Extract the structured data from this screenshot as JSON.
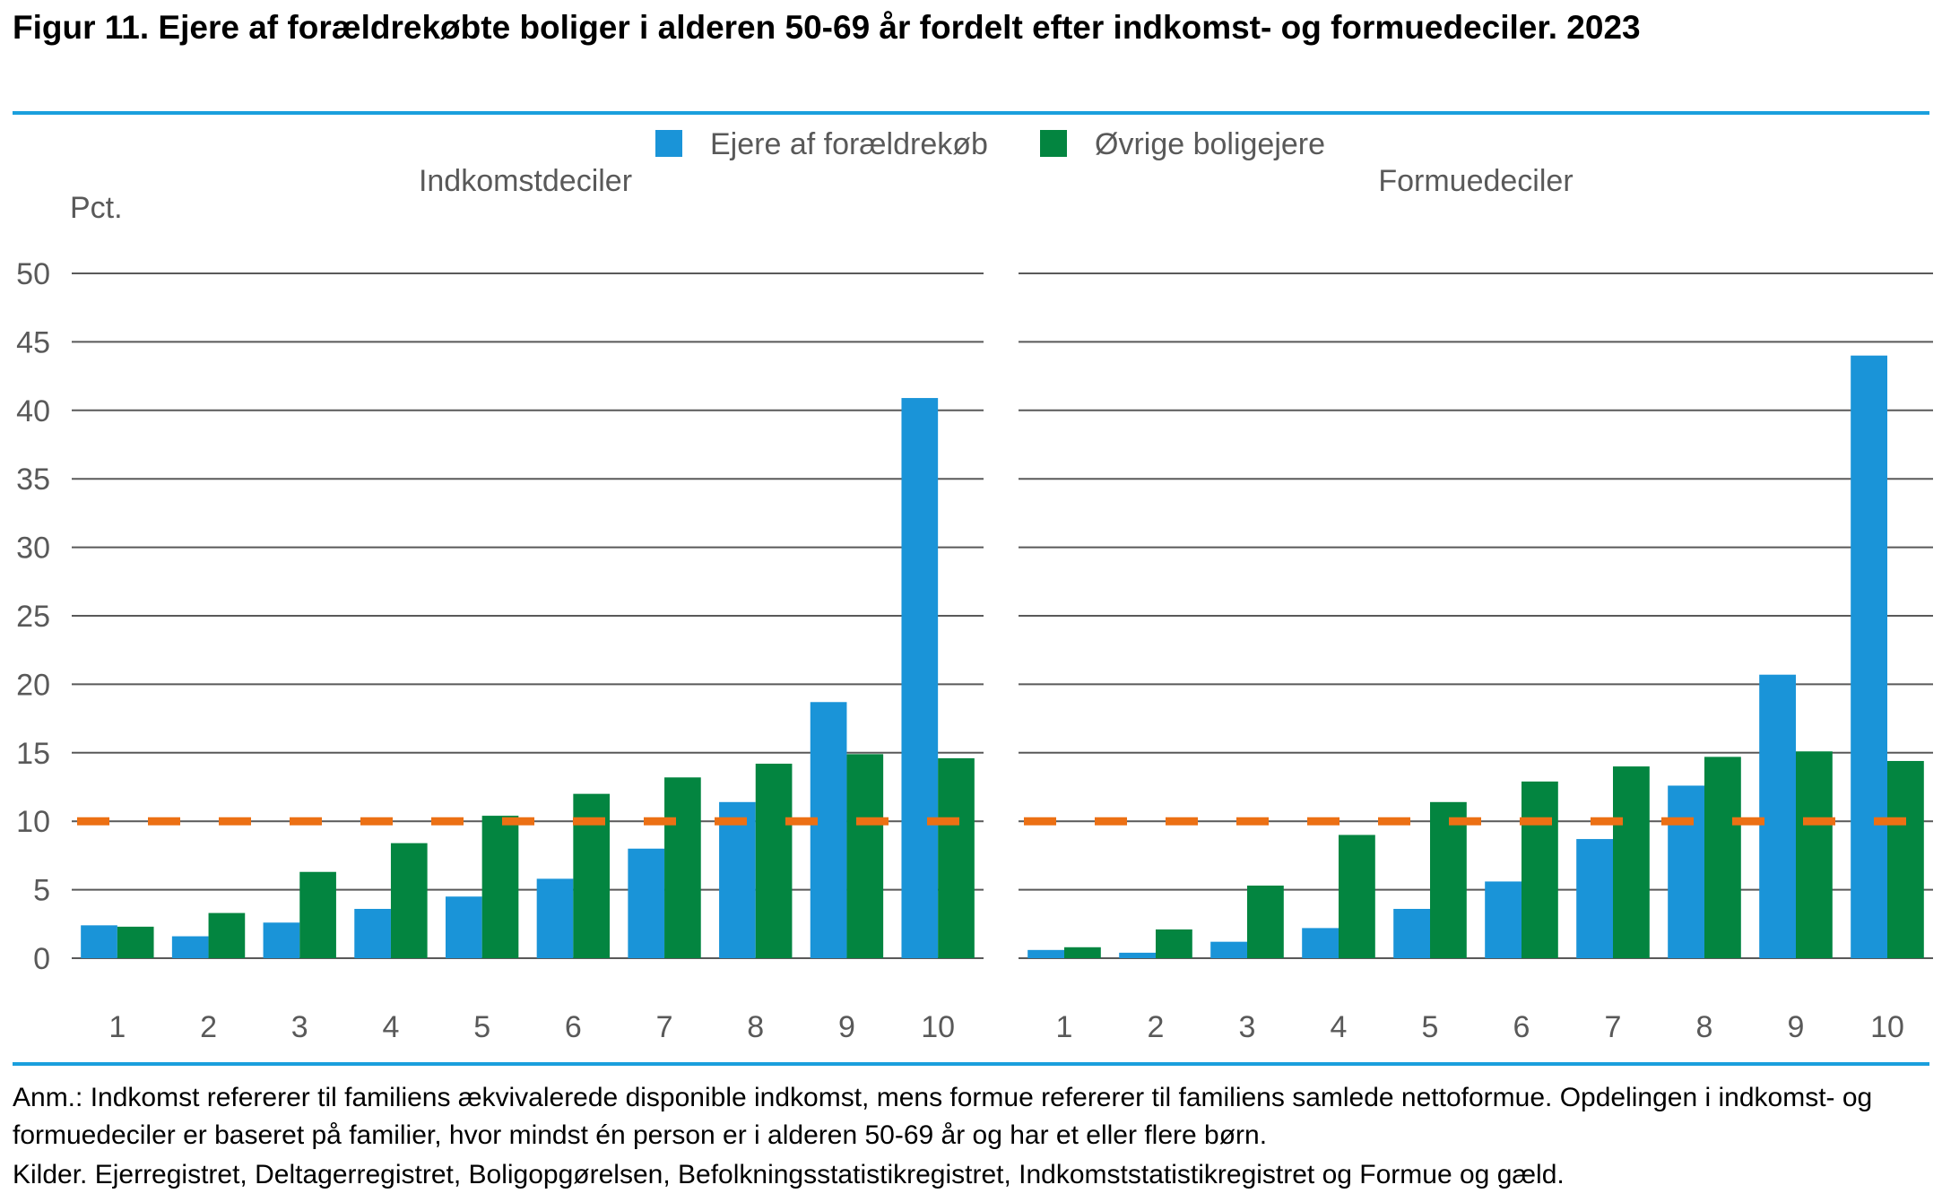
{
  "title": "Figur 11. Ejere af forældrekøbte boliger i alderen 50-69 år fordelt efter indkomst- og formuedeciler. 2023",
  "note": "Anm.: Indkomst refererer til familiens ækvivalerede disponible indkomst, mens formue refererer til familiens samlede nettoformue. Opdelingen i indkomst- og formuedeciler er baseret på familier, hvor mindst én person er i alderen 50-69 år og har et eller flere børn.",
  "sources": "Kilder. Ejerregistret, Deltagerregistret, Boligopgørelsen, Befolkningsstatistikregistret, Indkomststatistikregistret og Formue og gæld.",
  "chart_data": {
    "type": "bar",
    "ylabel": "Pct.",
    "ylim": [
      0,
      50
    ],
    "yticks": [
      0,
      5,
      10,
      15,
      20,
      25,
      30,
      35,
      40,
      45,
      50
    ],
    "grid": true,
    "legend": "top-center",
    "reference_line": 10,
    "colors": {
      "series1": "#1a94d8",
      "series2": "#038540",
      "reference": "#ec7014",
      "grid": "#595959",
      "text": "#595959"
    },
    "legend_entries": [
      "Ejere af forældrekøb",
      "Øvrige boligejere"
    ],
    "panels": [
      {
        "title": "Indkomstdeciler",
        "categories": [
          "1",
          "2",
          "3",
          "4",
          "5",
          "6",
          "7",
          "8",
          "9",
          "10"
        ],
        "series": [
          {
            "name": "Ejere af forældrekøb",
            "values": [
              2.4,
              1.6,
              2.6,
              3.6,
              4.5,
              5.8,
              8.0,
              11.4,
              18.7,
              40.9
            ]
          },
          {
            "name": "Øvrige boligejere",
            "values": [
              2.3,
              3.3,
              6.3,
              8.4,
              10.4,
              12.0,
              13.2,
              14.2,
              14.9,
              14.6
            ]
          }
        ]
      },
      {
        "title": "Formuedeciler",
        "categories": [
          "1",
          "2",
          "3",
          "4",
          "5",
          "6",
          "7",
          "8",
          "9",
          "10"
        ],
        "series": [
          {
            "name": "Ejere af forældrekøb",
            "values": [
              0.6,
              0.4,
              1.2,
              2.2,
              3.6,
              5.6,
              8.7,
              12.6,
              20.7,
              44.0
            ]
          },
          {
            "name": "Øvrige boligejere",
            "values": [
              0.8,
              2.1,
              5.3,
              9.0,
              11.4,
              12.9,
              14.0,
              14.7,
              15.1,
              14.4
            ]
          }
        ]
      }
    ]
  }
}
